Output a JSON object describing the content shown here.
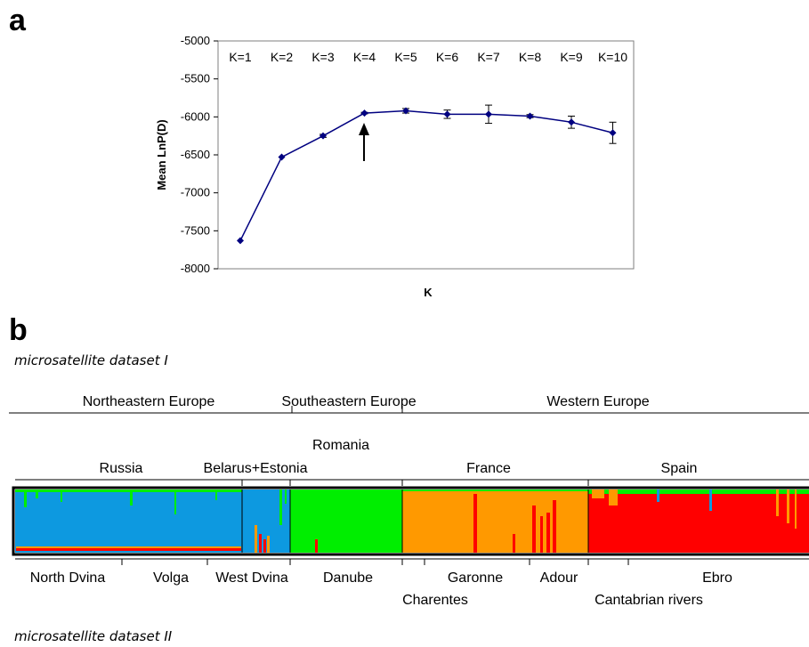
{
  "panel_a": {
    "letter": "a"
  },
  "panel_b": {
    "letter": "b",
    "dataset1_label": "microsatellite dataset I",
    "dataset2_label": "microsatellite dataset II",
    "regions": [
      "Northeastern Europe",
      "Southeastern Europe",
      "Western Europe"
    ],
    "countries": [
      "Russia",
      "Belarus+Estonia",
      "Romania",
      "France",
      "Spain"
    ],
    "rivers": [
      "North Dvina",
      "Volga",
      "West Dvina",
      "Danube",
      "Charentes",
      "Garonne",
      "Adour",
      "Cantabrian rivers",
      "Ebro"
    ],
    "cluster_colors": {
      "cluster1": "#0d99e0",
      "cluster2": "#00ee00",
      "cluster3": "#ff9900",
      "cluster4": "#ff0000"
    }
  },
  "chart_data": {
    "type": "line",
    "title": "",
    "xlabel": "K",
    "ylabel": "Mean LnP(D)",
    "categories": [
      "K=1",
      "K=2",
      "K=3",
      "K=4",
      "K=5",
      "K=6",
      "K=7",
      "K=8",
      "K=9",
      "K=10"
    ],
    "values": [
      -7630,
      -6530,
      -6250,
      -5950,
      -5920,
      -5965,
      -5965,
      -5990,
      -6070,
      -6210
    ],
    "error": [
      0,
      0,
      20,
      10,
      30,
      55,
      120,
      20,
      80,
      140
    ],
    "yticks": [
      "-5000",
      "-5500",
      "-6000",
      "-6500",
      "-7000",
      "-7500",
      "-8000"
    ],
    "ylim": [
      -8000,
      -5000
    ],
    "annotation": "arrow at K=4",
    "color": "#000080"
  }
}
